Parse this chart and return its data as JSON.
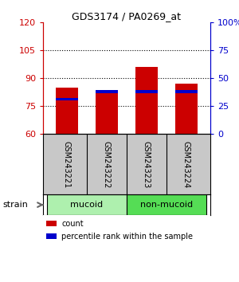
{
  "title": "GDS3174 / PA0269_at",
  "samples": [
    "GSM243221",
    "GSM243222",
    "GSM243223",
    "GSM243224"
  ],
  "count_values": [
    85.0,
    83.5,
    96.0,
    87.0
  ],
  "percentile_values": [
    78.0,
    82.0,
    82.0,
    82.0
  ],
  "percentile_bar_height": 1.5,
  "ylim_left": [
    60,
    120
  ],
  "ylim_right": [
    0,
    100
  ],
  "yticks_left": [
    60,
    75,
    90,
    105,
    120
  ],
  "yticks_right": [
    0,
    25,
    50,
    75,
    100
  ],
  "ytick_labels_right": [
    "0",
    "25",
    "50",
    "75",
    "100%"
  ],
  "groups": [
    {
      "label": "mucoid",
      "samples": [
        0,
        1
      ],
      "color": "#aef0ae"
    },
    {
      "label": "non-mucoid",
      "samples": [
        2,
        3
      ],
      "color": "#55dd55"
    }
  ],
  "bar_color_red": "#cc0000",
  "bar_color_blue": "#0000cc",
  "bar_width": 0.55,
  "background_plot": "#ffffff",
  "background_label": "#c8c8c8",
  "axis_left_color": "#cc0000",
  "axis_right_color": "#0000cc",
  "legend_items": [
    {
      "label": "count",
      "color": "#cc0000"
    },
    {
      "label": "percentile rank within the sample",
      "color": "#0000cc"
    }
  ],
  "strain_label": "strain",
  "ybase": 60,
  "grid_lines": [
    75,
    90,
    105
  ]
}
